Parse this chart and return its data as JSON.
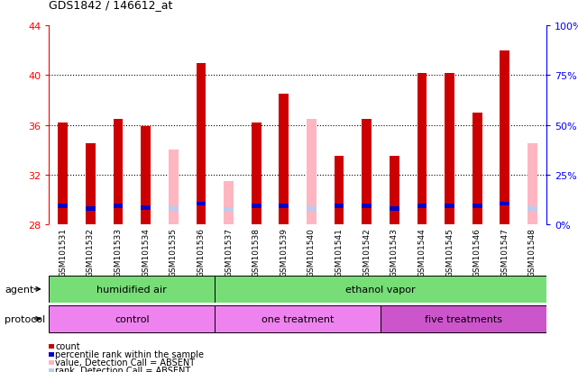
{
  "title": "GDS1842 / 146612_at",
  "samples": [
    "GSM101531",
    "GSM101532",
    "GSM101533",
    "GSM101534",
    "GSM101535",
    "GSM101536",
    "GSM101537",
    "GSM101538",
    "GSM101539",
    "GSM101540",
    "GSM101541",
    "GSM101542",
    "GSM101543",
    "GSM101544",
    "GSM101545",
    "GSM101546",
    "GSM101547",
    "GSM101548"
  ],
  "count_values": [
    36.2,
    34.5,
    36.5,
    35.9,
    null,
    41.0,
    null,
    36.2,
    38.5,
    null,
    33.5,
    36.5,
    33.5,
    40.2,
    40.2,
    37.0,
    42.0,
    null
  ],
  "absent_value": [
    null,
    null,
    null,
    null,
    34.0,
    null,
    31.5,
    null,
    null,
    36.5,
    null,
    null,
    null,
    null,
    null,
    null,
    null,
    34.5
  ],
  "percentile_rank": [
    29.5,
    29.3,
    29.5,
    29.4,
    null,
    29.7,
    null,
    29.5,
    29.5,
    null,
    29.5,
    29.5,
    29.3,
    29.5,
    29.5,
    29.5,
    29.7,
    null
  ],
  "absent_rank": [
    null,
    null,
    null,
    null,
    29.3,
    null,
    29.2,
    null,
    null,
    29.3,
    null,
    null,
    null,
    null,
    null,
    null,
    null,
    29.3
  ],
  "ymin": 28,
  "ymax": 44,
  "yticks": [
    28,
    32,
    36,
    40,
    44
  ],
  "y2ticks_pct": [
    0,
    25,
    50,
    75,
    100
  ],
  "agent_groups": [
    {
      "label": "humidified air",
      "start": 0,
      "end": 6,
      "color": "#77DD77"
    },
    {
      "label": "ethanol vapor",
      "start": 6,
      "end": 18,
      "color": "#77DD77"
    }
  ],
  "protocol_groups": [
    {
      "label": "control",
      "start": 0,
      "end": 6,
      "color": "#EE82EE"
    },
    {
      "label": "one treatment",
      "start": 6,
      "end": 12,
      "color": "#EE82EE"
    },
    {
      "label": "five treatments",
      "start": 12,
      "end": 18,
      "color": "#CC55CC"
    }
  ],
  "bar_color_red": "#CC0000",
  "bar_color_blue": "#0000CC",
  "bar_color_pink": "#FFB6C1",
  "bar_color_lightblue": "#BBCCEE",
  "bg_gray": "#C8C8C8",
  "plot_bg": "#FFFFFF",
  "bar_width": 0.35,
  "blue_bar_height": 0.35,
  "legend_items": [
    {
      "color": "#CC0000",
      "label": "count"
    },
    {
      "color": "#0000CC",
      "label": "percentile rank within the sample"
    },
    {
      "color": "#FFB6C1",
      "label": "value, Detection Call = ABSENT"
    },
    {
      "color": "#BBCCEE",
      "label": "rank, Detection Call = ABSENT"
    }
  ]
}
